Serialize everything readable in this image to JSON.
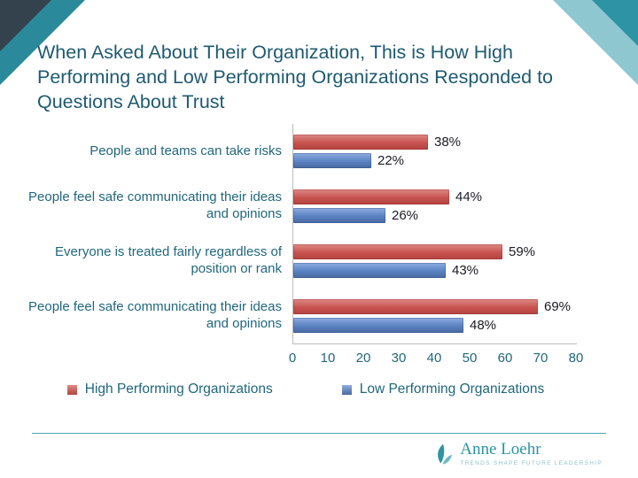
{
  "title": "When Asked About Their Organization, This is How High Performing and Low Performing Organizations Responded to Questions About Trust",
  "chart_data": {
    "type": "bar",
    "orientation": "horizontal",
    "title": "When Asked About Their Organization, This is How High Performing and Low Performing Organizations Responded to Questions About Trust",
    "categories": [
      "People and teams can take risks",
      "People feel safe communicating their ideas and opinions",
      "Everyone is treated fairly regardless of position or rank",
      "People feel safe communicating their ideas and opinions"
    ],
    "series": [
      {
        "name": "High Performing Organizations",
        "color": "#C0504D",
        "values": [
          38,
          44,
          59,
          69
        ]
      },
      {
        "name": "Low Performing Organizations",
        "color": "#4F81BD",
        "values": [
          22,
          26,
          43,
          48
        ]
      }
    ],
    "xlim": [
      0,
      80
    ],
    "xticks": [
      0,
      10,
      20,
      30,
      40,
      50,
      60,
      70,
      80
    ],
    "value_suffix": "%",
    "grid": false,
    "legend_position": "bottom"
  },
  "footer": {
    "brand": "Anne Loehr",
    "tagline": "TRENDS SHAPE FUTURE LEADERSHIP"
  },
  "colors": {
    "title_text": "#1E5A70",
    "axis_text": "#20677B",
    "value_text": "#1A1A24",
    "bar_high": "#C0504D",
    "bar_low": "#4F81BD",
    "accent_teal": "#2E93A4",
    "accent_teal_light": "#8FC7D0",
    "corner_dark": "#33424C",
    "divider": "#4AA7B5"
  }
}
